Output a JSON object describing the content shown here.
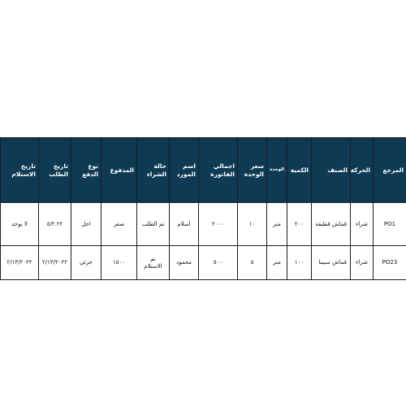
{
  "table": {
    "headers": [
      "المرجع",
      "الحركة",
      "الصنف",
      "الكمية",
      "الوحدة",
      "سعر الوحدة",
      "اجمالي الفاتورة",
      "اسم المورد",
      "حالة الشراء",
      "المدفوع",
      "نوع الدفع",
      "تاريخ الطلب",
      "تاريخ الاستلام"
    ],
    "rows": [
      [
        "PO1",
        "شراء",
        "قماش قطيفة",
        "٢٠٠",
        "متر",
        "١٠",
        "٢٠٠٠",
        "اسلام",
        "تم الطلب",
        "صفر",
        "اجل",
        "٥/٢.٢٢",
        "لا يوجد"
      ],
      [
        "PO23",
        "شراء",
        "قماش سبينا",
        "١٠٠",
        "متر",
        "٥",
        "٥٠٠",
        "محمود",
        "تم الاستلام",
        "١٥٠٠",
        "جزئي",
        "٢/١٣/٢٠٢٢",
        "٢/١٣/٢٠٢٢"
      ]
    ]
  },
  "colors": {
    "header_bg": "#0e3a54",
    "header_text": "#ffffff",
    "border": "#1d1d1d"
  }
}
